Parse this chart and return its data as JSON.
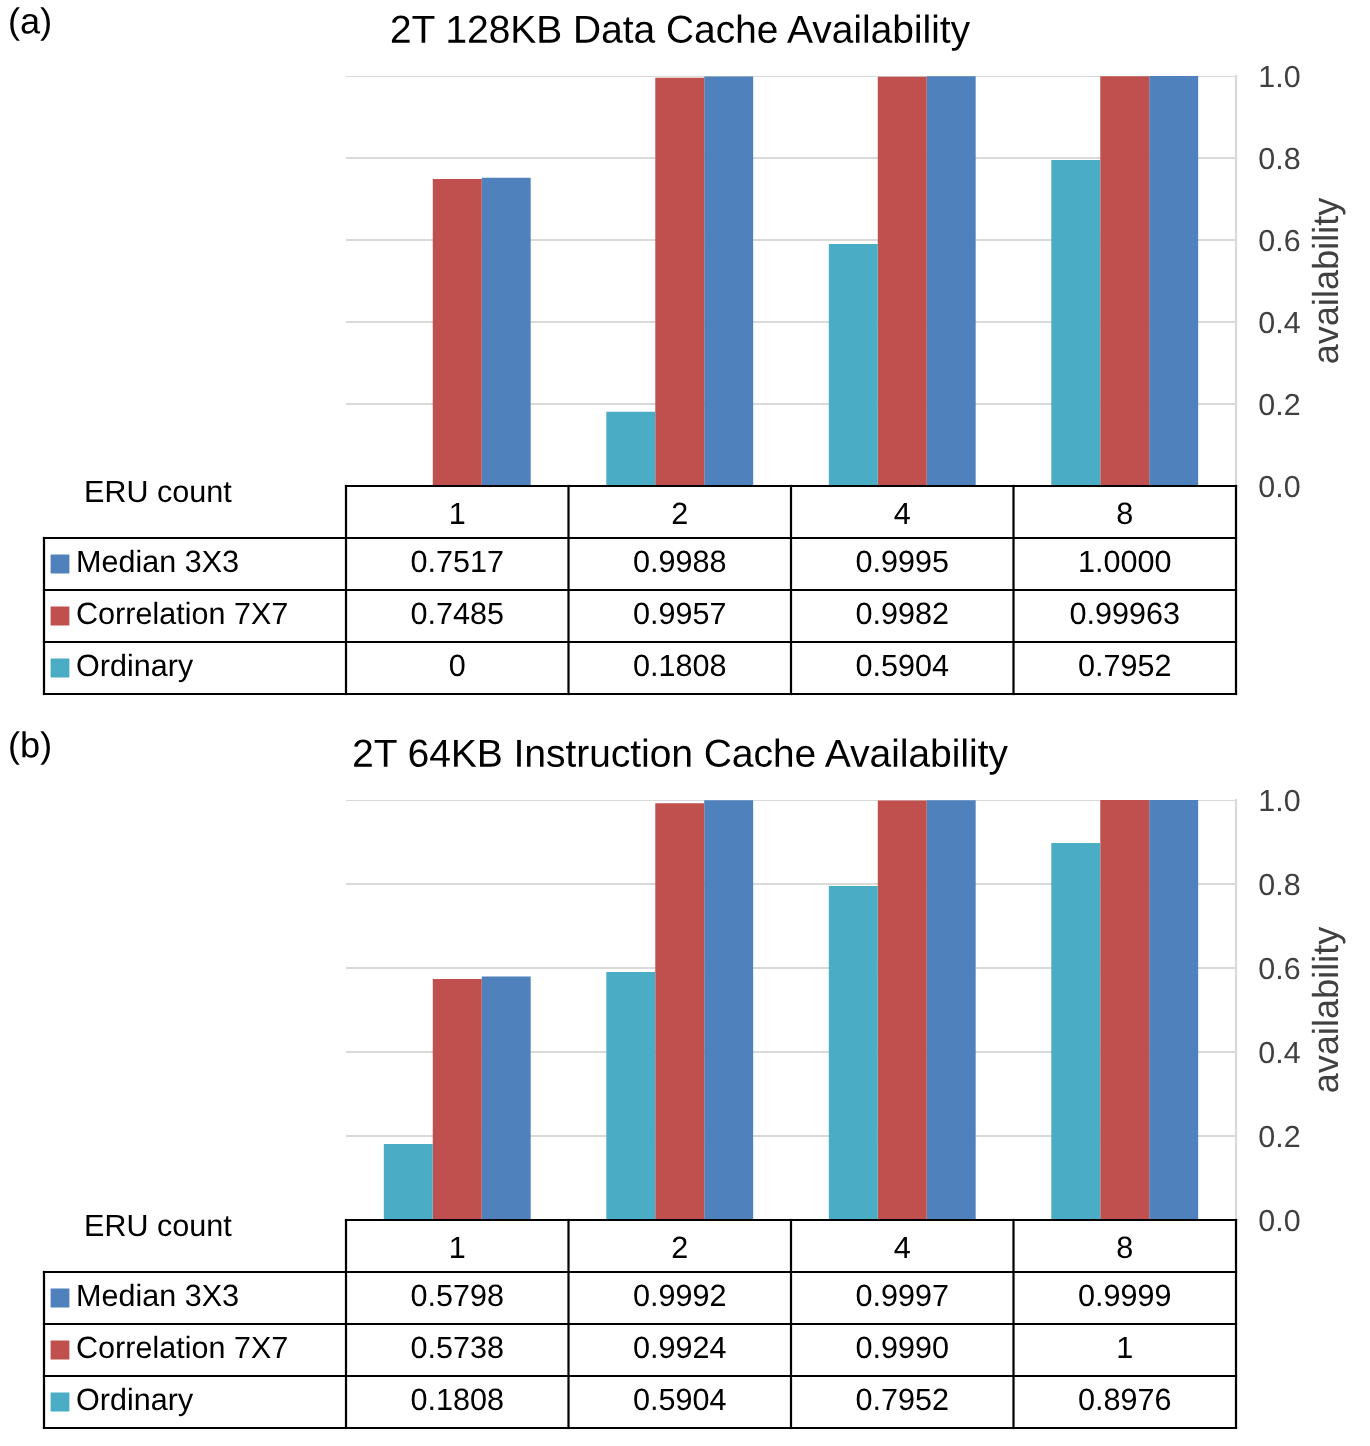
{
  "chart_data": [
    {
      "type": "bar",
      "title": "2T 128KB Data Cache Availability",
      "legend": "bottom left",
      "xlabel": "ERU count",
      "ylabel": "availability",
      "annotations": [
        "(a)"
      ],
      "categories": [
        "1",
        "2",
        "4",
        "8"
      ],
      "ylim": [
        0,
        1.0
      ],
      "yticks": [
        {
          "value": 0,
          "label": "0.0"
        },
        {
          "value": 0.2,
          "label": "0.2"
        },
        {
          "value": 0.4,
          "label": "0.4"
        },
        {
          "value": 0.6,
          "label": "0.6"
        },
        {
          "value": 0.8,
          "label": "0.8"
        },
        {
          "value": 1.0,
          "label": "1.0"
        }
      ],
      "grid": "y",
      "series": [
        {
          "name": "Median 3X3",
          "color": "#4f81bd",
          "values": [
            0.7517,
            0.9988,
            0.9995,
            1.0
          ],
          "value_labels": [
            "0.7517",
            "0.9988",
            "0.9995",
            "1.0000"
          ]
        },
        {
          "name": "Correlation 7X7",
          "color": "#c0504d",
          "values": [
            0.7485,
            0.9957,
            0.9982,
            0.99963
          ],
          "value_labels": [
            "0.7485",
            "0.9957",
            "0.9982",
            "0.99963"
          ]
        },
        {
          "name": "Ordinary",
          "color": "#4bacc6",
          "values": [
            0,
            0.1808,
            0.5904,
            0.7952
          ],
          "value_labels": [
            "0",
            "0.1808",
            "0.5904",
            "0.7952"
          ]
        }
      ]
    },
    {
      "type": "bar",
      "title": "2T 64KB Instruction Cache Availability",
      "legend": "bottom left",
      "xlabel": "ERU count",
      "ylabel": "availability",
      "annotations": [
        "(b)"
      ],
      "categories": [
        "1",
        "2",
        "4",
        "8"
      ],
      "ylim": [
        0,
        1.0
      ],
      "yticks": [
        {
          "value": 0,
          "label": "0.0"
        },
        {
          "value": 0.2,
          "label": "0.2"
        },
        {
          "value": 0.4,
          "label": "0.4"
        },
        {
          "value": 0.6,
          "label": "0.6"
        },
        {
          "value": 0.8,
          "label": "0.8"
        },
        {
          "value": 1.0,
          "label": "1.0"
        }
      ],
      "grid": "y",
      "series": [
        {
          "name": "Median 3X3",
          "color": "#4f81bd",
          "values": [
            0.5798,
            0.9992,
            0.9997,
            0.9999
          ],
          "value_labels": [
            "0.5798",
            "0.9992",
            "0.9997",
            "0.9999"
          ]
        },
        {
          "name": "Correlation 7X7",
          "color": "#c0504d",
          "values": [
            0.5738,
            0.9924,
            0.999,
            1
          ],
          "value_labels": [
            "0.5738",
            "0.9924",
            "0.9990",
            "1"
          ]
        },
        {
          "name": "Ordinary",
          "color": "#4bacc6",
          "values": [
            0.1808,
            0.5904,
            0.7952,
            0.8976
          ],
          "value_labels": [
            "0.1808",
            "0.5904",
            "0.7952",
            "0.8976"
          ]
        }
      ]
    }
  ]
}
